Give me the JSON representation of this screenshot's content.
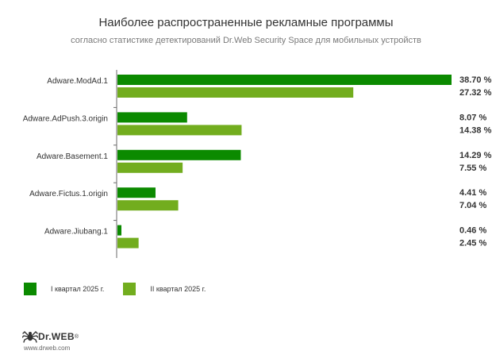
{
  "chart_data": {
    "type": "bar",
    "orientation": "horizontal",
    "title": "Наиболее распространенные рекламные программы",
    "subtitle": "согласно статистике детектирований Dr.Web Security Space для мобильных устройств",
    "categories": [
      "Adware.ModAd.1",
      "Adware.AdPush.3.origin",
      "Adware.Basement.1",
      "Adware.Fictus.1.origin",
      "Adware.Jiubang.1"
    ],
    "series": [
      {
        "name": "I квартал 2025 г.",
        "color": "#0b8a00",
        "values": [
          38.7,
          8.07,
          14.29,
          4.41,
          0.46
        ],
        "labels": [
          "38.70 %",
          "8.07 %",
          "14.29 %",
          "4.41 %",
          "0.46 %"
        ]
      },
      {
        "name": "II квартал 2025 г.",
        "color": "#72ad1e",
        "values": [
          27.32,
          14.38,
          7.55,
          7.04,
          2.45
        ],
        "labels": [
          "27.32 %",
          "14.38 %",
          "7.55 %",
          "7.04 %",
          "2.45 %"
        ]
      }
    ],
    "xlim": [
      0,
      38.7
    ],
    "grid": false,
    "legend_position": "bottom-left"
  },
  "logo": {
    "brand": "Dr.WEB",
    "mark": "®",
    "url": "www.drweb.com",
    "icon": "spider-icon"
  }
}
